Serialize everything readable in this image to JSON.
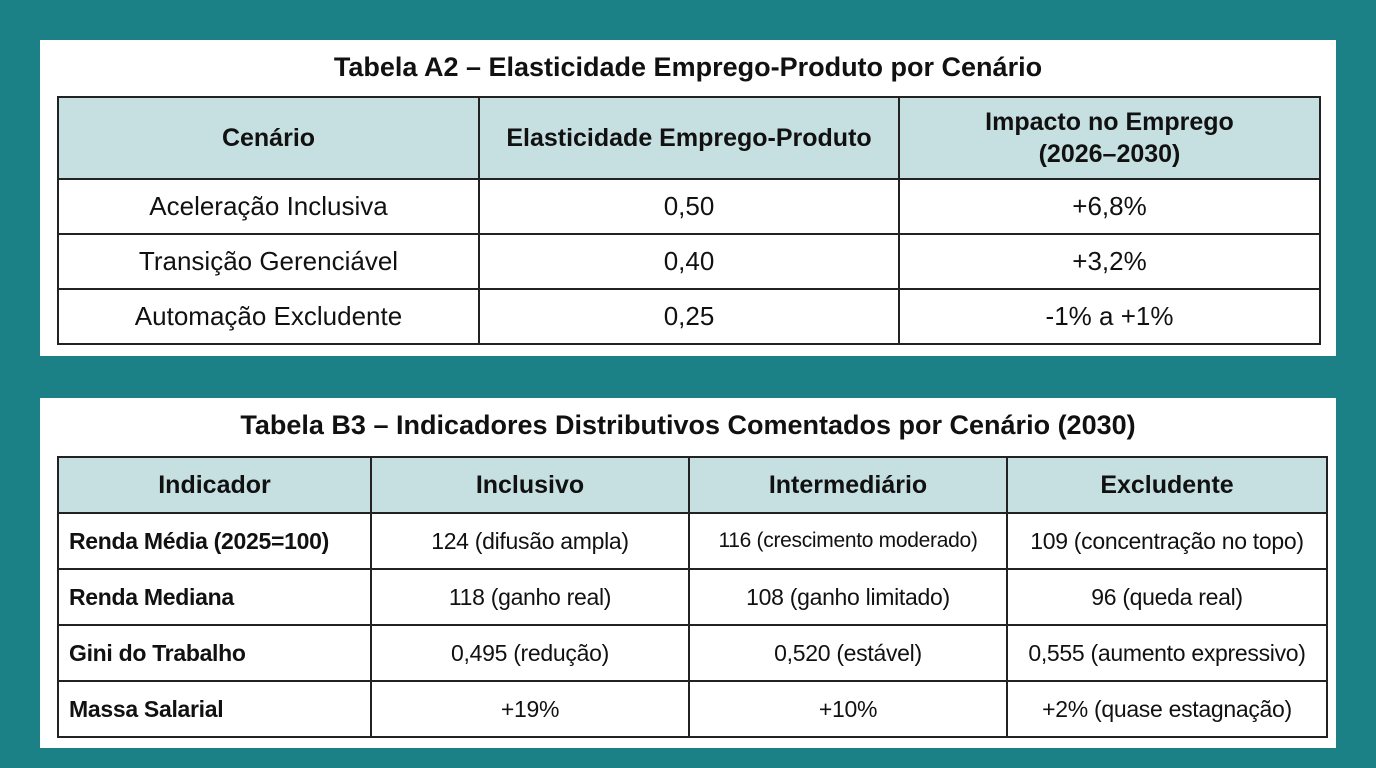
{
  "tables": [
    {
      "title": "Tabela A2 – Elasticidade Emprego-Produto por Cenário",
      "header": [
        "Cenário",
        "Elasticidade Emprego-Produto",
        "Impacto no Emprego\n(2026–2030)"
      ],
      "rows": [
        [
          "Aceleração Inclusiva",
          "0,50",
          "+6,8%"
        ],
        [
          "Transição Gerenciável",
          "0,40",
          "+3,2%"
        ],
        [
          "Automação Excludente",
          "0,25",
          "-1% a +1%"
        ]
      ]
    },
    {
      "title": "Tabela B3 – Indicadores Distributivos Comentados por Cenário (2030)",
      "header": [
        "Indicador",
        "Inclusivo",
        "Intermediário",
        "Excludente"
      ],
      "rows": [
        [
          "Renda Média (2025=100)",
          "124 (difusão ampla)",
          "116 (crescimento moderado)",
          "109 (concentração no topo)"
        ],
        [
          "Renda Mediana",
          "118 (ganho real)",
          "108 (ganho limitado)",
          "96 (queda real)"
        ],
        [
          "Gini do Trabalho",
          "0,495 (redução)",
          "0,520 (estável)",
          "0,555 (aumento expressivo)"
        ],
        [
          "Massa Salarial",
          "+19%",
          "+10%",
          "+2% (quase estagnação)"
        ]
      ]
    }
  ]
}
